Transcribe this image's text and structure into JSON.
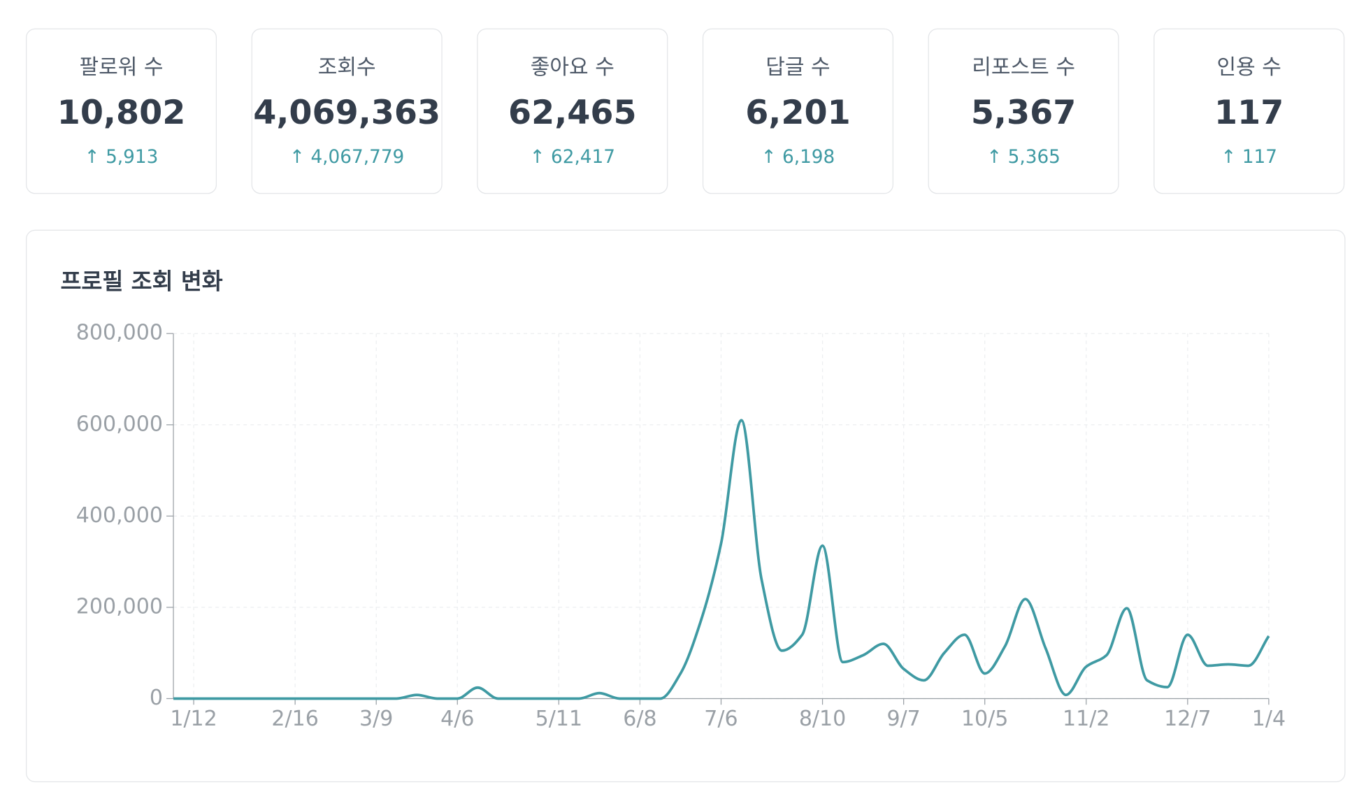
{
  "stats": [
    {
      "label": "팔로워 수",
      "value": "10,802",
      "change": "↑ 5,913"
    },
    {
      "label": "조회수",
      "value": "4,069,363",
      "change": "↑ 4,067,779"
    },
    {
      "label": "좋아요 수",
      "value": "62,465",
      "change": "↑ 62,417"
    },
    {
      "label": "답글 수",
      "value": "6,201",
      "change": "↑ 6,198"
    },
    {
      "label": "리포스트 수",
      "value": "5,367",
      "change": "↑ 5,365"
    },
    {
      "label": "인용 수",
      "value": "117",
      "change": "↑ 117"
    }
  ],
  "chart_data": {
    "type": "line",
    "title": "프로필 조회 변화",
    "categories": [
      null,
      "1/12",
      null,
      null,
      null,
      null,
      "2/16",
      null,
      null,
      null,
      "3/9",
      null,
      null,
      null,
      "4/6",
      null,
      null,
      null,
      null,
      "5/11",
      null,
      null,
      null,
      "6/8",
      null,
      null,
      null,
      "7/6",
      null,
      null,
      null,
      null,
      "8/10",
      null,
      null,
      null,
      "9/7",
      null,
      null,
      null,
      "10/5",
      null,
      null,
      null,
      null,
      "11/2",
      null,
      null,
      null,
      null,
      "12/7",
      null,
      null,
      null,
      "1/4"
    ],
    "series": [
      {
        "color": "#3f9aa3",
        "values": [
          0,
          0,
          0,
          0,
          0,
          0,
          0,
          0,
          0,
          0,
          0,
          0,
          8000,
          0,
          0,
          24000,
          0,
          0,
          0,
          0,
          0,
          12000,
          0,
          0,
          0,
          55000,
          170000,
          340000,
          610000,
          260000,
          105000,
          140000,
          335000,
          80000,
          95000,
          120000,
          65000,
          40000,
          100000,
          140000,
          55000,
          115000,
          218000,
          110000,
          8000,
          70000,
          95000,
          198000,
          40000,
          25000,
          140000,
          72000,
          75000,
          72000,
          137000
        ]
      }
    ],
    "ylim": [
      0,
      800000
    ],
    "yticks": [
      0,
      {
        "value": 200000,
        "label": "200,000"
      },
      {
        "value": 400000,
        "label": "400,000"
      },
      {
        "value": 600000,
        "label": "600,000"
      },
      {
        "value": 800000,
        "label": "800,000"
      }
    ],
    "grid": true
  }
}
